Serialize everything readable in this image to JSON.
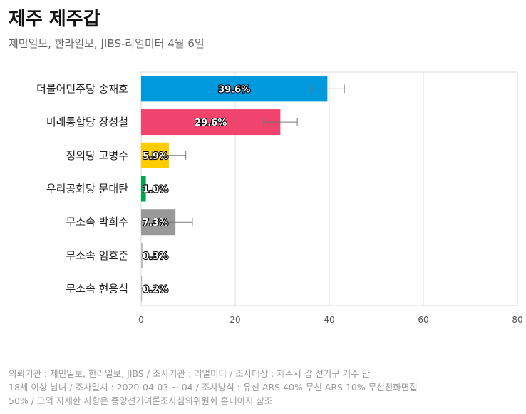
{
  "header": {
    "title": "제주 제주갑",
    "subtitle": "제민일보, 한라일보, JIBS-리얼미터 4월 6일"
  },
  "footnote": [
    "의뢰기관 : 제민일보, 한라일보, JIBS / 조사기관 : 리얼미터 / 조사대상 : 제주시 갑 선거구 거주 만",
    "18세 이상 남녀 / 조사일시 : 2020-04-03 ~ 04 / 조사방식 : 유선 ARS 40% 무선 ARS 10% 무선전화면접",
    "50% / 그외 자세한 사항은 중앙선거여론조사심의위원회 홈페이지 참조"
  ],
  "chart_data": {
    "type": "bar",
    "orientation": "horizontal",
    "categories": [
      "더불어민주당 송재호",
      "미래통합당 장성철",
      "정의당 고병수",
      "우리공화당 문대탄",
      "무소속 박희수",
      "무소속 임효준",
      "무소속 현용식"
    ],
    "values": [
      39.6,
      29.6,
      5.9,
      1.0,
      7.3,
      0.3,
      0.2
    ],
    "value_labels": [
      "39.6%",
      "29.6%",
      "5.9%",
      "1.0%",
      "7.3%",
      "0.3%",
      "0.2%"
    ],
    "error_bars": [
      [
        36.0,
        43.2
      ],
      [
        26.0,
        33.2
      ],
      [
        2.3,
        9.5
      ],
      null,
      [
        3.7,
        10.9
      ],
      null,
      null
    ],
    "colors": [
      "#0099dd",
      "#f0436d",
      "#ffcc00",
      "#00a651",
      "#999999",
      "#bbbbbb",
      "#bbbbbb"
    ],
    "xlim": [
      0,
      80
    ],
    "xticks": [
      0,
      20,
      40,
      60,
      80
    ],
    "xtick_labels": [
      "0",
      "20",
      "40",
      "60",
      "80"
    ],
    "grid": true
  }
}
